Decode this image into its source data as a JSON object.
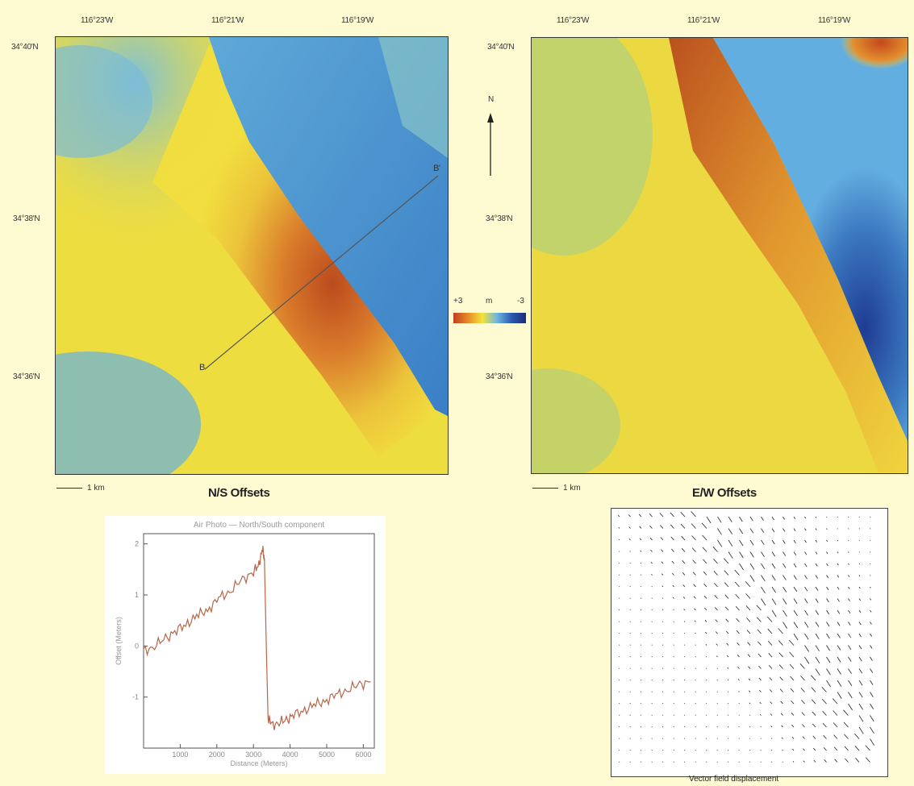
{
  "left_map": {
    "title": "N/S Offsets",
    "lon_ticks": [
      "116°23'W",
      "116°21'W",
      "116°19'W"
    ],
    "lat_ticks": [
      "34°40'N",
      "34°38'N",
      "34°36'N"
    ],
    "scale": "1 km",
    "profile_start": "B",
    "profile_end": "B'"
  },
  "right_map": {
    "title": "E/W Offsets",
    "lon_ticks": [
      "116°23'W",
      "116°21'W",
      "116°19'W"
    ],
    "lat_ticks": [
      "34°40'N",
      "34°38'N",
      "34°36'N"
    ],
    "scale": "1 km"
  },
  "north_arrow": "N",
  "colorbar": {
    "min_label": "+3",
    "unit": "m",
    "max_label": "-3",
    "colors": [
      "#c0401c",
      "#e88a2a",
      "#f4e23a",
      "#6fb6e0",
      "#2c5ab0",
      "#1a2c7a"
    ]
  },
  "chart_data": {
    "type": "line",
    "title": "Air Photo — North/South component",
    "xlabel": "Distance (Meters)",
    "ylabel": "Offset (Meters)",
    "xlim": [
      0,
      6300
    ],
    "ylim": [
      -2,
      2.2
    ],
    "xticks": [
      1000,
      2000,
      3000,
      4000,
      5000,
      6000
    ],
    "yticks": [
      -1,
      0,
      1,
      2
    ],
    "series": [
      {
        "color": "#b5674a",
        "x": [
          0,
          300,
          600,
          900,
          1200,
          1500,
          1800,
          2100,
          2400,
          2700,
          3000,
          3150,
          3250,
          3300,
          3350,
          3400,
          3500,
          3700,
          3900,
          4100,
          4400,
          4700,
          5000,
          5300,
          5600,
          5900,
          6200
        ],
        "y": [
          -0.1,
          0.0,
          0.15,
          0.3,
          0.45,
          0.6,
          0.75,
          0.95,
          1.1,
          1.3,
          1.45,
          1.6,
          1.9,
          1.7,
          0.0,
          -1.4,
          -1.55,
          -1.5,
          -1.45,
          -1.35,
          -1.25,
          -1.15,
          -1.05,
          -0.95,
          -0.85,
          -0.75,
          -0.7
        ]
      }
    ]
  },
  "vector_field": {
    "caption": "Vector field displacement"
  }
}
